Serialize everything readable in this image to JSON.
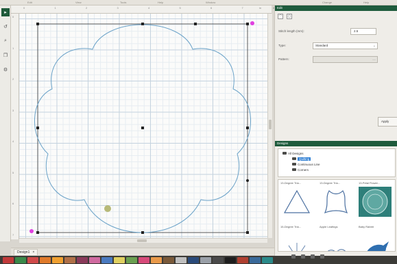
{
  "menu": [
    "Edit",
    "View",
    "Tools",
    "Help",
    "Window",
    "Change",
    "Help"
  ],
  "toolbar": [
    {
      "icon": "select-arrow-icon",
      "glyph": "▸",
      "active": true
    },
    {
      "icon": "undo-icon",
      "glyph": "↺"
    },
    {
      "icon": "zoom-icon",
      "glyph": "⌕"
    },
    {
      "icon": "copy-icon",
      "glyph": "❐"
    },
    {
      "icon": "settings-icon",
      "glyph": "⚙"
    }
  ],
  "ruler": {
    "top": [
      "0",
      "1",
      "2",
      "3",
      "4",
      "5",
      "6",
      "7",
      "8"
    ],
    "left": [
      "0",
      "1",
      "2",
      "3",
      "4",
      "5",
      "6",
      "7"
    ],
    "unit": "in"
  },
  "tabs": {
    "doc": "Design1",
    "close": "×"
  },
  "swatches": [
    "#c23a3a",
    "#3a8a4a",
    "#d04a4a",
    "#e07a2a",
    "#f0a030",
    "#b07048",
    "#8a3a5a",
    "#d06aa0",
    "#4a7ac0",
    "#e0d060",
    "#6aa050",
    "#d84a7a",
    "#ea9a4a",
    "#7a5a3a",
    "#c0c0c0",
    "#2a4a7a",
    "#9aa0a8",
    "#4a4a4a",
    "#1e1e1e",
    "#b04030",
    "#3a6a9a",
    "#2a8a8a"
  ],
  "props": {
    "title": "Edit",
    "stitch_length_label": "Stitch length (mm):",
    "stitch_length_value": "2.5",
    "type_label": "Type:",
    "type_value": "Standard",
    "pattern_label": "Pattern:",
    "pattern_value": "",
    "apply": "Apply"
  },
  "designs": {
    "title": "Designs",
    "tree": [
      {
        "label": "All Designs",
        "level": 0
      },
      {
        "label": "Quilting",
        "level": 1,
        "selected": true
      },
      {
        "label": "Continuous Line",
        "level": 1
      },
      {
        "label": "Corners",
        "level": 1
      }
    ]
  },
  "thumbs": [
    {
      "caption": "13-Degree Tria...",
      "shape": "triangle"
    },
    {
      "caption": "13-Degree Tria...",
      "shape": "applique"
    },
    {
      "caption": "13-Petal Flower...",
      "shape": "flower",
      "selected": true
    },
    {
      "caption": "15-Degree Tria...",
      "shape": "fan"
    },
    {
      "caption": "Apple Leafings",
      "shape": "leaf"
    },
    {
      "caption": "Baby Rabbit",
      "shape": "bird"
    }
  ]
}
